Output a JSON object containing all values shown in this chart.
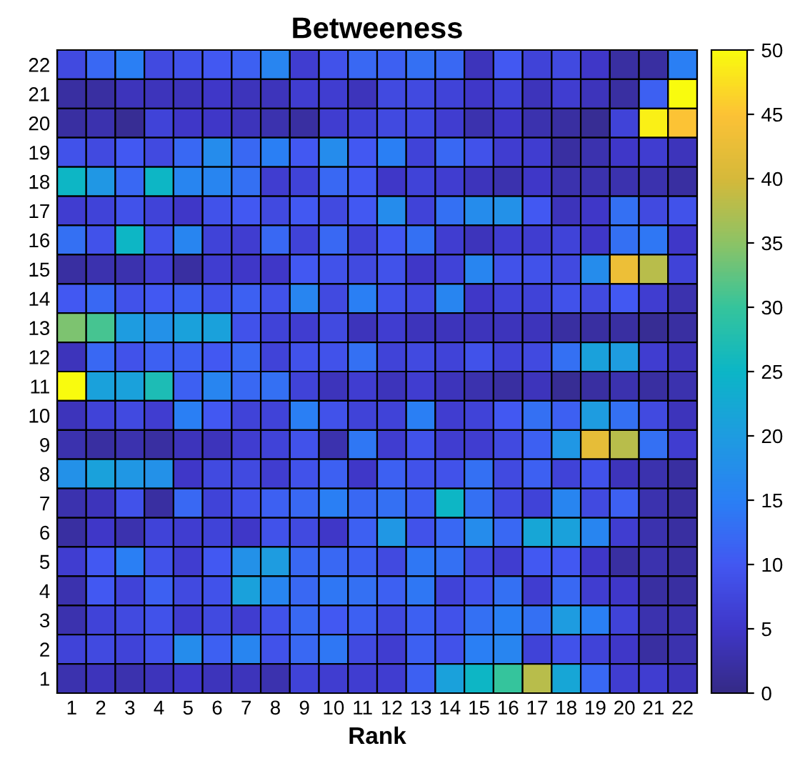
{
  "chart_data": {
    "type": "heatmap",
    "title": "Betweeness",
    "xlabel": "Rank",
    "categories": [
      "1",
      "2",
      "3",
      "4",
      "5",
      "6",
      "7",
      "8",
      "9",
      "10",
      "11",
      "12",
      "13",
      "14",
      "15",
      "16",
      "17",
      "18",
      "19",
      "20",
      "21",
      "22"
    ],
    "y_categories": [
      "22",
      "21",
      "20",
      "19",
      "18",
      "17",
      "16",
      "15",
      "14",
      "13",
      "12",
      "11",
      "10",
      "9",
      "8",
      "7",
      "6",
      "5",
      "4",
      "3",
      "2",
      "1"
    ],
    "cells": [
      [
        8,
        12,
        15,
        8,
        9,
        10,
        11,
        16,
        6,
        9,
        12,
        11,
        13,
        12,
        4,
        10,
        7,
        8,
        5,
        2,
        2,
        15
      ],
      [
        2,
        2,
        4,
        4,
        4,
        5,
        4,
        4,
        6,
        6,
        4,
        8,
        8,
        7,
        5,
        7,
        4,
        6,
        4,
        2,
        11,
        50
      ],
      [
        2,
        3,
        1,
        7,
        5,
        5,
        4,
        3,
        2,
        6,
        7,
        8,
        8,
        6,
        3,
        5,
        3,
        2,
        1,
        7,
        49,
        45
      ],
      [
        9,
        8,
        10,
        8,
        12,
        17,
        12,
        15,
        10,
        17,
        10,
        15,
        7,
        12,
        9,
        6,
        6,
        2,
        3,
        5,
        6,
        4
      ],
      [
        25,
        19,
        12,
        25,
        16,
        16,
        13,
        6,
        7,
        12,
        10,
        5,
        7,
        6,
        4,
        3,
        5,
        3,
        3,
        3,
        3,
        2
      ],
      [
        6,
        7,
        9,
        7,
        5,
        9,
        10,
        8,
        10,
        8,
        10,
        17,
        7,
        13,
        17,
        18,
        10,
        4,
        5,
        13,
        8,
        9
      ],
      [
        13,
        9,
        25,
        9,
        16,
        7,
        6,
        12,
        7,
        12,
        7,
        10,
        13,
        6,
        4,
        6,
        6,
        7,
        5,
        13,
        14,
        5
      ],
      [
        2,
        3,
        3,
        6,
        2,
        6,
        5,
        5,
        10,
        9,
        8,
        9,
        5,
        7,
        16,
        9,
        9,
        8,
        17,
        43,
        38,
        7
      ],
      [
        10,
        12,
        9,
        10,
        11,
        9,
        11,
        9,
        16,
        8,
        15,
        9,
        8,
        16,
        5,
        7,
        7,
        9,
        8,
        10,
        6,
        3
      ],
      [
        34,
        31,
        20,
        18,
        21,
        21,
        9,
        7,
        6,
        8,
        4,
        6,
        4,
        4,
        4,
        4,
        4,
        2,
        2,
        2,
        1,
        2
      ],
      [
        4,
        12,
        9,
        11,
        11,
        10,
        12,
        7,
        9,
        9,
        13,
        7,
        8,
        7,
        9,
        7,
        8,
        13,
        21,
        20,
        6,
        4
      ],
      [
        50,
        21,
        21,
        27,
        11,
        16,
        12,
        13,
        7,
        4,
        6,
        4,
        6,
        4,
        3,
        2,
        4,
        1,
        2,
        3,
        2,
        3
      ],
      [
        4,
        7,
        8,
        6,
        15,
        10,
        7,
        7,
        15,
        9,
        7,
        7,
        15,
        6,
        7,
        10,
        13,
        11,
        20,
        13,
        8,
        4
      ],
      [
        3,
        2,
        3,
        2,
        4,
        4,
        6,
        7,
        9,
        3,
        14,
        6,
        9,
        6,
        6,
        8,
        11,
        19,
        42,
        38,
        13,
        6
      ],
      [
        18,
        21,
        19,
        18,
        5,
        8,
        8,
        6,
        9,
        11,
        5,
        11,
        9,
        9,
        13,
        8,
        11,
        7,
        9,
        4,
        3,
        2
      ],
      [
        3,
        4,
        9,
        2,
        12,
        7,
        9,
        11,
        12,
        15,
        12,
        13,
        11,
        25,
        13,
        8,
        7,
        16,
        8,
        11,
        3,
        2
      ],
      [
        2,
        5,
        3,
        7,
        6,
        7,
        5,
        9,
        8,
        5,
        11,
        19,
        9,
        12,
        17,
        12,
        22,
        21,
        16,
        6,
        3,
        2
      ],
      [
        6,
        10,
        15,
        9,
        6,
        10,
        18,
        20,
        12,
        12,
        11,
        8,
        14,
        13,
        8,
        6,
        10,
        10,
        5,
        2,
        3,
        2
      ],
      [
        3,
        10,
        7,
        11,
        8,
        9,
        21,
        16,
        12,
        14,
        13,
        11,
        14,
        7,
        9,
        13,
        6,
        12,
        6,
        5,
        2,
        2
      ],
      [
        3,
        7,
        8,
        9,
        6,
        8,
        6,
        9,
        12,
        10,
        11,
        8,
        11,
        9,
        13,
        15,
        13,
        20,
        15,
        7,
        3,
        3
      ],
      [
        7,
        8,
        7,
        9,
        17,
        11,
        16,
        9,
        12,
        14,
        8,
        6,
        11,
        9,
        15,
        16,
        7,
        9,
        7,
        5,
        2,
        3
      ],
      [
        3,
        4,
        3,
        4,
        5,
        4,
        4,
        3,
        7,
        6,
        6,
        6,
        11,
        21,
        25,
        30,
        38,
        22,
        12,
        6,
        6,
        4
      ]
    ],
    "clim": [
      0,
      50
    ],
    "cticks": [
      0,
      5,
      10,
      15,
      20,
      25,
      30,
      35,
      40,
      45,
      50
    ]
  }
}
